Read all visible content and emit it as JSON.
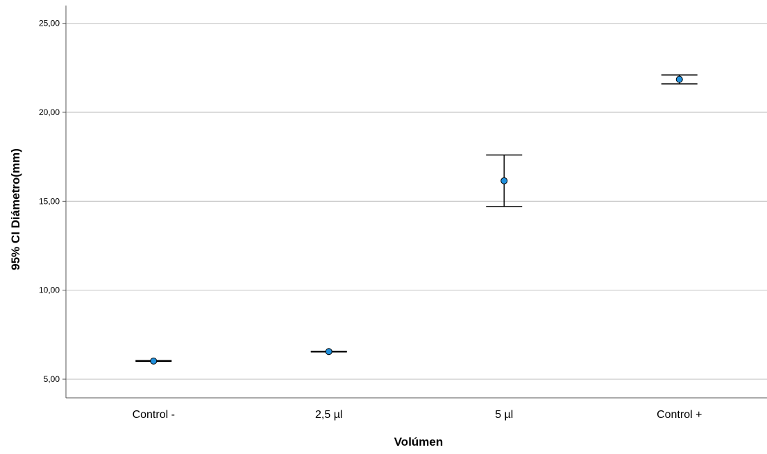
{
  "chart_data": {
    "type": "errorbar",
    "title": "",
    "xlabel": "Volúmen",
    "ylabel": "95% CI Diámetro(mm)",
    "categories": [
      "Control -",
      "2,5 µl",
      "5 µl",
      "Control +"
    ],
    "means": [
      6.02,
      6.55,
      16.15,
      21.85
    ],
    "ci_lower": [
      6.0,
      6.53,
      14.7,
      21.6
    ],
    "ci_upper": [
      6.05,
      6.57,
      17.6,
      22.1
    ],
    "ylim": [
      3.95,
      26.0
    ],
    "yticks": [
      5,
      10,
      15,
      20,
      25
    ],
    "ytick_labels": [
      "5,00",
      "10,00",
      "15,00",
      "20,00",
      "25,00"
    ],
    "grid": "horizontal",
    "legend": "none",
    "marker_color": "#1f8fdc",
    "line_color": "#000000",
    "grid_color": "#c8c8c8"
  }
}
